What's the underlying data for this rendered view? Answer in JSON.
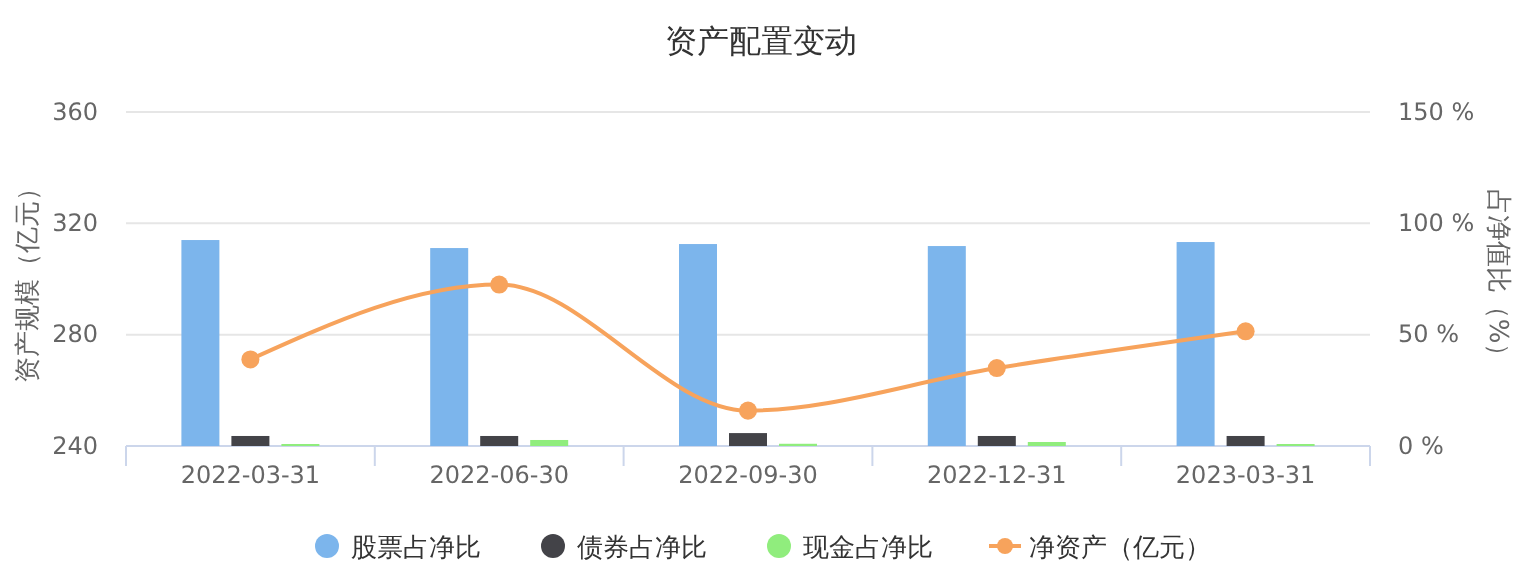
{
  "chart_data": {
    "type": "bar",
    "title": "资产配置变动",
    "categories": [
      "2022-03-31",
      "2022-06-30",
      "2022-09-30",
      "2022-12-31",
      "2023-03-31"
    ],
    "series": [
      {
        "name": "股票占净比",
        "color": "#7cb5ec",
        "axis": "y2",
        "values": [
          92.5,
          88.9,
          90.7,
          89.8,
          91.6
        ]
      },
      {
        "name": "债券占净比",
        "color": "#434348",
        "axis": "y2",
        "values": [
          4.5,
          4.5,
          5.8,
          4.5,
          4.5
        ]
      },
      {
        "name": "现金占净比",
        "color": "#90ed7d",
        "axis": "y2",
        "values": [
          0.9,
          2.7,
          1.0,
          1.8,
          0.9
        ]
      },
      {
        "name": "净资产（亿元）",
        "type": "line",
        "color": "#f7a35c",
        "axis": "y",
        "values": [
          271.1,
          298.0,
          252.7,
          268.0,
          281.2
        ]
      }
    ],
    "ylabel": "资产规模（亿元）",
    "y2label": "占净值比（%）",
    "ylim": [
      240,
      360
    ],
    "yticks": [
      240,
      280,
      320,
      360
    ],
    "y2lim": [
      0,
      150
    ],
    "y2ticks": [
      {
        "value": 0,
        "label": "0 %"
      },
      {
        "value": 50,
        "label": "50 %"
      },
      {
        "value": 100,
        "label": "100 %"
      },
      {
        "value": 150,
        "label": "150 %"
      }
    ],
    "grid": "y",
    "legend": "bottom",
    "marker": "circle"
  }
}
